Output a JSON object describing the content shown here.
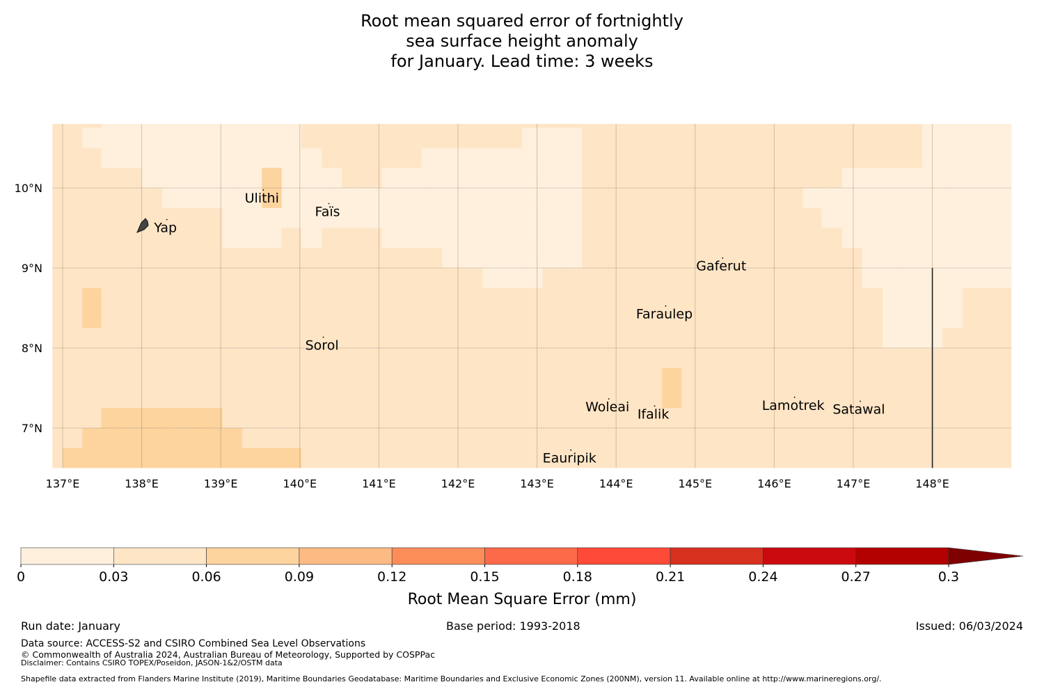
{
  "title": [
    "Root mean squared error of fortnightly",
    "sea surface height anomaly",
    "for January. Lead time: 3 weeks"
  ],
  "chart_data": {
    "type": "heatmap",
    "extent": {
      "lon": [
        136.87,
        149.0
      ],
      "lat": [
        6.5,
        10.8
      ]
    },
    "base_level": 1,
    "level_note": "levels index colorbar bins: 0 = 0-0.03, 1 = 0.03-0.06, 2 = 0.06-0.09",
    "cells": [
      [
        137.49,
        140.02,
        10.75,
        10.8,
        0
      ],
      [
        137.25,
        140.02,
        10.5,
        10.75,
        0
      ],
      [
        142.81,
        143.57,
        10.5,
        10.75,
        0
      ],
      [
        137.49,
        140.28,
        10.25,
        10.5,
        0
      ],
      [
        141.54,
        143.57,
        10.25,
        10.5,
        0
      ],
      [
        138.0,
        139.52,
        10.0,
        10.25,
        0
      ],
      [
        139.77,
        140.53,
        10.0,
        10.25,
        0
      ],
      [
        141.04,
        143.57,
        10.0,
        10.25,
        0
      ],
      [
        138.26,
        139.52,
        9.75,
        10.0,
        0
      ],
      [
        139.77,
        143.57,
        9.75,
        10.0,
        0
      ],
      [
        139.02,
        143.57,
        9.5,
        9.75,
        0
      ],
      [
        139.02,
        139.77,
        9.25,
        9.5,
        0
      ],
      [
        140.02,
        140.28,
        9.25,
        9.5,
        0
      ],
      [
        141.04,
        143.57,
        9.25,
        9.5,
        0
      ],
      [
        141.8,
        143.57,
        9.0,
        9.25,
        0
      ],
      [
        142.31,
        143.07,
        8.75,
        9.0,
        0
      ],
      [
        147.87,
        149.0,
        10.25,
        10.8,
        0
      ],
      [
        146.86,
        149.0,
        10.0,
        10.25,
        0
      ],
      [
        146.36,
        149.0,
        9.75,
        10.0,
        0
      ],
      [
        146.6,
        149.0,
        9.5,
        9.75,
        0
      ],
      [
        146.86,
        149.0,
        9.25,
        9.5,
        0
      ],
      [
        147.11,
        149.0,
        8.75,
        9.25,
        0
      ],
      [
        147.37,
        148.38,
        8.25,
        8.75,
        0
      ],
      [
        147.37,
        148.13,
        8.0,
        8.25,
        0
      ],
      [
        139.52,
        139.77,
        9.75,
        10.25,
        2
      ],
      [
        137.25,
        137.49,
        8.25,
        8.75,
        2
      ],
      [
        137.49,
        139.02,
        7.0,
        7.25,
        2
      ],
      [
        137.25,
        139.27,
        6.75,
        7.0,
        2
      ],
      [
        137.0,
        140.02,
        6.5,
        6.75,
        2
      ],
      [
        144.58,
        144.83,
        7.25,
        7.75,
        2
      ]
    ],
    "x_ticks": [
      {
        "v": 137,
        "label": "137°E"
      },
      {
        "v": 138,
        "label": "138°E"
      },
      {
        "v": 139,
        "label": "139°E"
      },
      {
        "v": 140,
        "label": "140°E"
      },
      {
        "v": 141,
        "label": "141°E"
      },
      {
        "v": 142,
        "label": "142°E"
      },
      {
        "v": 143,
        "label": "143°E"
      },
      {
        "v": 144,
        "label": "144°E"
      },
      {
        "v": 145,
        "label": "145°E"
      },
      {
        "v": 146,
        "label": "146°E"
      },
      {
        "v": 147,
        "label": "147°E"
      },
      {
        "v": 148,
        "label": "148°E"
      }
    ],
    "y_ticks": [
      {
        "v": 10,
        "label": "10°N"
      },
      {
        "v": 9,
        "label": "9°N"
      },
      {
        "v": 8,
        "label": "8°N"
      },
      {
        "v": 7,
        "label": "7°N"
      }
    ],
    "places": [
      {
        "name": "Yap",
        "lon": 138.3,
        "lat": 9.5
      },
      {
        "name": "Ulithi",
        "lon": 139.52,
        "lat": 9.87
      },
      {
        "name": "Faïs",
        "lon": 140.35,
        "lat": 9.7
      },
      {
        "name": "Sorol",
        "lon": 140.28,
        "lat": 8.03
      },
      {
        "name": "Gaferut",
        "lon": 145.33,
        "lat": 9.02
      },
      {
        "name": "Faraulep",
        "lon": 144.61,
        "lat": 8.42
      },
      {
        "name": "Woleai",
        "lon": 143.89,
        "lat": 7.26
      },
      {
        "name": "Ifalik",
        "lon": 144.47,
        "lat": 7.17
      },
      {
        "name": "Lamotrek",
        "lon": 146.24,
        "lat": 7.28
      },
      {
        "name": "Satawal",
        "lon": 147.07,
        "lat": 7.23
      },
      {
        "name": "Eauripik",
        "lon": 143.41,
        "lat": 6.62
      }
    ],
    "boundary_line": {
      "lon": 148.0,
      "lat": [
        6.5,
        9.0
      ]
    },
    "colorbar": {
      "label": "Root Mean Square Error (mm)",
      "bounds": [
        0,
        0.03,
        0.06,
        0.09,
        0.12,
        0.15,
        0.18,
        0.21,
        0.24,
        0.27,
        0.3
      ],
      "tick_labels": [
        "0",
        "0.03",
        "0.06",
        "0.09",
        "0.12",
        "0.15",
        "0.18",
        "0.21",
        "0.24",
        "0.27",
        "0.3"
      ],
      "colors": [
        "#fef0dd",
        "#fee5c6",
        "#fdd49e",
        "#fdbb84",
        "#fc8d59",
        "#fd6a4a",
        "#fe4a38",
        "#d7301f",
        "#cb0a10",
        "#b30000"
      ],
      "extend_color": "#7f0000"
    }
  },
  "footer": {
    "run_date": "Run date: January",
    "base_period": "Base period: 1993-2018",
    "issued": "Issued: 06/03/2024",
    "source": "Data source: ACCESS-S2 and CSIRO Combined Sea Level Observations",
    "copyright": "© Commonwealth of Australia 2024, Australian Bureau of Meteorology, Supported by COSPPac",
    "disclaimer": "Disclaimer: Contains CSIRO TOPEX/Poseidon, JASON-1&2/OSTM data",
    "shapefile": "Shapefile data extracted from Flanders Marine Institute (2019), Maritime Boundaries Geodatabase: Maritime Boundaries and Exclusive Economic Zones (200NM), version 11. Available online at http://www.marineregions.org/."
  }
}
